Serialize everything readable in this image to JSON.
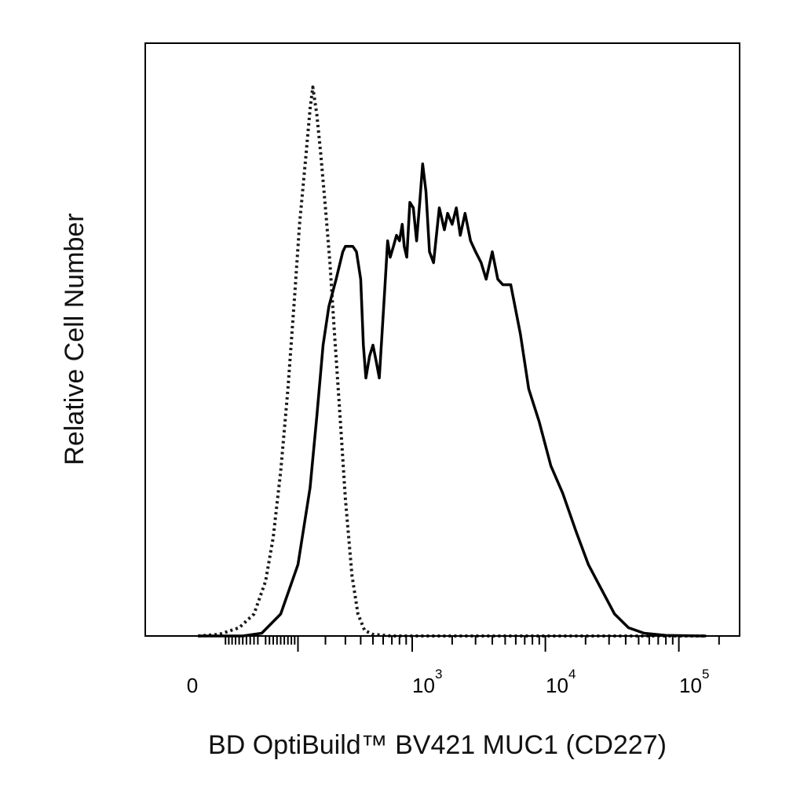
{
  "chart_data": {
    "type": "line",
    "title": "",
    "xlabel": "BD OptiBuild™ BV421 MUC1 (CD227)",
    "ylabel": "Relative Cell Number",
    "x_scale": "biexponential",
    "grid": false,
    "legend": "none",
    "x_tick_labels": [
      {
        "base": "0",
        "exp": ""
      },
      {
        "base": "10",
        "exp": "3"
      },
      {
        "base": "10",
        "exp": "4"
      },
      {
        "base": "10",
        "exp": "5"
      }
    ],
    "series": [
      {
        "style": "dotted",
        "color": "#1a1a1a",
        "points": [
          [
            -200,
            0
          ],
          [
            -120,
            0.3
          ],
          [
            -60,
            1.5
          ],
          [
            -20,
            4
          ],
          [
            10,
            10
          ],
          [
            30,
            18
          ],
          [
            50,
            30
          ],
          [
            70,
            45
          ],
          [
            90,
            62
          ],
          [
            105,
            75
          ],
          [
            125,
            87
          ],
          [
            140,
            96
          ],
          [
            150,
            100
          ],
          [
            165,
            95
          ],
          [
            180,
            88
          ],
          [
            200,
            78
          ],
          [
            220,
            68
          ],
          [
            240,
            56
          ],
          [
            270,
            40
          ],
          [
            300,
            25
          ],
          [
            340,
            11
          ],
          [
            380,
            4
          ],
          [
            430,
            1
          ],
          [
            500,
            0.3
          ],
          [
            700,
            0
          ],
          [
            3000,
            0
          ],
          [
            30000,
            0
          ],
          [
            160000,
            0
          ]
        ]
      },
      {
        "style": "solid",
        "color": "#000000",
        "points": [
          [
            -200,
            0
          ],
          [
            -50,
            0
          ],
          [
            0,
            0.5
          ],
          [
            50,
            4
          ],
          [
            100,
            13
          ],
          [
            140,
            27
          ],
          [
            165,
            40
          ],
          [
            190,
            53
          ],
          [
            215,
            60
          ],
          [
            250,
            65
          ],
          [
            285,
            70
          ],
          [
            300,
            71
          ],
          [
            320,
            71
          ],
          [
            345,
            71
          ],
          [
            370,
            70
          ],
          [
            400,
            65
          ],
          [
            420,
            53
          ],
          [
            440,
            47
          ],
          [
            470,
            51
          ],
          [
            500,
            53
          ],
          [
            530,
            50
          ],
          [
            560,
            47
          ],
          [
            620,
            64
          ],
          [
            650,
            72
          ],
          [
            680,
            69
          ],
          [
            720,
            71
          ],
          [
            760,
            73
          ],
          [
            800,
            72
          ],
          [
            840,
            75
          ],
          [
            870,
            71
          ],
          [
            910,
            69
          ],
          [
            960,
            79
          ],
          [
            1020,
            78
          ],
          [
            1080,
            72
          ],
          [
            1140,
            79
          ],
          [
            1200,
            86
          ],
          [
            1270,
            81
          ],
          [
            1350,
            70
          ],
          [
            1450,
            68
          ],
          [
            1600,
            78
          ],
          [
            1750,
            74
          ],
          [
            1850,
            77
          ],
          [
            2000,
            75
          ],
          [
            2150,
            78
          ],
          [
            2300,
            73
          ],
          [
            2500,
            77
          ],
          [
            2750,
            72
          ],
          [
            3000,
            70
          ],
          [
            3300,
            68
          ],
          [
            3600,
            65
          ],
          [
            4000,
            70
          ],
          [
            4400,
            65
          ],
          [
            4800,
            64
          ],
          [
            5500,
            64
          ],
          [
            6500,
            55
          ],
          [
            7500,
            45
          ],
          [
            9000,
            39
          ],
          [
            11000,
            31
          ],
          [
            13500,
            26
          ],
          [
            17000,
            19
          ],
          [
            21000,
            13
          ],
          [
            27000,
            8
          ],
          [
            33000,
            4
          ],
          [
            42000,
            1.5
          ],
          [
            55000,
            0.5
          ],
          [
            80000,
            0.1
          ],
          [
            160000,
            0
          ]
        ]
      }
    ]
  }
}
